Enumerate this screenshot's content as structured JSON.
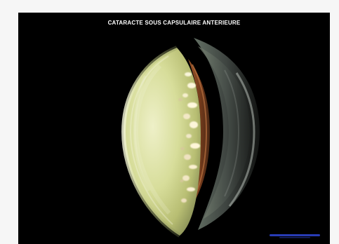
{
  "slide": {
    "title": "CATARACTE  SOUS CAPSULAIRE ANTERIEURE",
    "background_color": "#000000",
    "watermark_color": "#2a3fbf"
  },
  "illustration": {
    "subject": "lens-cross-section",
    "cataract_type": "anterior subcapsular"
  }
}
